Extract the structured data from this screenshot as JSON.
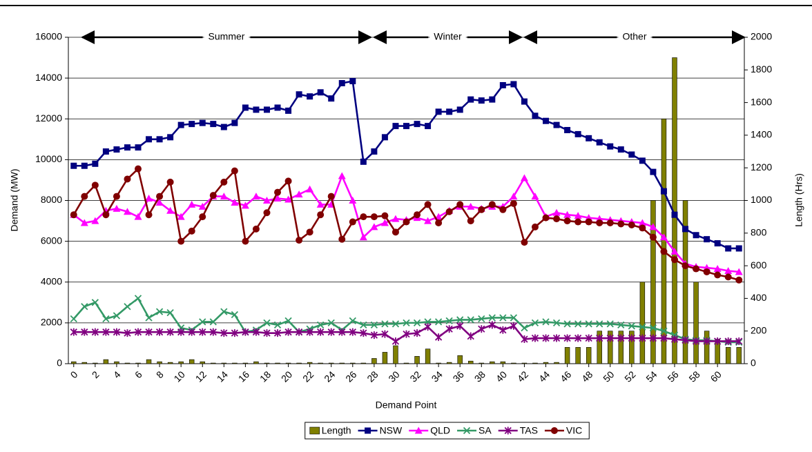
{
  "chart_data": {
    "type": "combo",
    "annotations": [
      "Summer",
      "Winter",
      "Other"
    ],
    "x_label": "Demand Point",
    "y_label": "Demand (MW)",
    "y2_label": "Length (Hrs)",
    "x": [
      0,
      1,
      2,
      3,
      4,
      5,
      6,
      7,
      8,
      9,
      10,
      11,
      12,
      13,
      14,
      15,
      16,
      17,
      18,
      19,
      20,
      21,
      22,
      23,
      24,
      25,
      26,
      27,
      28,
      29,
      30,
      31,
      32,
      33,
      34,
      35,
      36,
      37,
      38,
      39,
      40,
      41,
      42,
      43,
      44,
      45,
      46,
      47,
      48,
      49,
      50,
      51,
      52,
      53,
      54,
      55,
      56,
      57,
      58,
      59,
      60,
      61,
      62
    ],
    "xlim": [
      -0.5,
      62.5
    ],
    "xticks": [
      0,
      2,
      4,
      6,
      8,
      10,
      12,
      14,
      16,
      18,
      20,
      22,
      24,
      26,
      28,
      30,
      32,
      34,
      36,
      38,
      40,
      42,
      44,
      46,
      48,
      50,
      52,
      54,
      56,
      58,
      60
    ],
    "ylim": [
      0,
      16000
    ],
    "yticks": [
      0,
      2000,
      4000,
      6000,
      8000,
      10000,
      12000,
      14000,
      16000
    ],
    "y2lim": [
      0,
      2000
    ],
    "y2ticks": [
      0,
      200,
      400,
      600,
      800,
      1000,
      1200,
      1400,
      1600,
      1800,
      2000
    ],
    "grid": true,
    "legend": "bottom",
    "series": [
      {
        "name": "Length",
        "type": "bar",
        "axis": "y2",
        "color": "#808000",
        "values": [
          12,
          8,
          4,
          25,
          12,
          4,
          4,
          25,
          12,
          8,
          12,
          25,
          12,
          4,
          4,
          4,
          4,
          12,
          4,
          4,
          4,
          4,
          8,
          4,
          4,
          4,
          4,
          4,
          32,
          70,
          110,
          4,
          45,
          90,
          4,
          8,
          50,
          16,
          4,
          12,
          12,
          4,
          4,
          4,
          8,
          8,
          100,
          100,
          100,
          200,
          200,
          200,
          200,
          500,
          1000,
          1500,
          1875,
          1000,
          500,
          200,
          150,
          100,
          100
        ]
      },
      {
        "name": "NSW",
        "type": "line",
        "marker": "square",
        "color": "#000080",
        "values": [
          9700,
          9700,
          9800,
          10400,
          10500,
          10600,
          10600,
          11000,
          11000,
          11100,
          11700,
          11750,
          11800,
          11750,
          11600,
          11800,
          12550,
          12450,
          12450,
          12550,
          12400,
          13200,
          13100,
          13300,
          13000,
          13750,
          13850,
          9900,
          10400,
          11100,
          11650,
          11650,
          11750,
          11650,
          12350,
          12350,
          12450,
          12950,
          12900,
          12950,
          13650,
          13700,
          12850,
          12150,
          11900,
          11700,
          11450,
          11250,
          11050,
          10850,
          10650,
          10500,
          10250,
          9950,
          9400,
          8450,
          7300,
          6600,
          6300,
          6100,
          5900,
          5650,
          5650
        ]
      },
      {
        "name": "QLD",
        "type": "line",
        "marker": "triangle",
        "color": "#ff00ff",
        "values": [
          7300,
          6900,
          7000,
          7500,
          7600,
          7450,
          7200,
          8100,
          7900,
          7500,
          7200,
          7800,
          7700,
          8200,
          8200,
          7900,
          7750,
          8200,
          8000,
          8100,
          8050,
          8300,
          8550,
          7800,
          7800,
          9200,
          8000,
          6200,
          6700,
          6900,
          7100,
          7050,
          7150,
          7000,
          7200,
          7500,
          7700,
          7700,
          7600,
          7700,
          7700,
          8200,
          9100,
          8200,
          7200,
          7400,
          7300,
          7250,
          7150,
          7100,
          7050,
          7000,
          6950,
          6900,
          6700,
          6200,
          5500,
          4900,
          4750,
          4700,
          4650,
          4550,
          4500
        ]
      },
      {
        "name": "SA",
        "type": "line",
        "marker": "x",
        "color": "#339966",
        "values": [
          2200,
          2800,
          3000,
          2200,
          2350,
          2800,
          3200,
          2250,
          2550,
          2500,
          1750,
          1650,
          2050,
          2050,
          2550,
          2400,
          1550,
          1650,
          2000,
          1900,
          2100,
          1550,
          1700,
          1900,
          2000,
          1650,
          2100,
          1900,
          1900,
          1950,
          1950,
          2000,
          2000,
          2050,
          2050,
          2100,
          2150,
          2150,
          2200,
          2250,
          2250,
          2250,
          1750,
          2000,
          2050,
          2000,
          1950,
          1950,
          1950,
          1950,
          1950,
          1900,
          1850,
          1800,
          1750,
          1600,
          1400,
          1200,
          1150,
          1150,
          1100,
          1050,
          1050
        ]
      },
      {
        "name": "TAS",
        "type": "line",
        "marker": "star",
        "color": "#800080",
        "values": [
          1550,
          1550,
          1550,
          1550,
          1550,
          1500,
          1550,
          1550,
          1550,
          1550,
          1550,
          1550,
          1550,
          1550,
          1500,
          1500,
          1550,
          1550,
          1500,
          1500,
          1550,
          1550,
          1550,
          1550,
          1550,
          1550,
          1550,
          1500,
          1400,
          1450,
          1100,
          1450,
          1500,
          1800,
          1300,
          1700,
          1850,
          1350,
          1700,
          1900,
          1650,
          1850,
          1200,
          1250,
          1250,
          1250,
          1250,
          1250,
          1250,
          1250,
          1250,
          1250,
          1250,
          1250,
          1250,
          1250,
          1200,
          1150,
          1100,
          1100,
          1100,
          1100,
          1100
        ]
      },
      {
        "name": "VIC",
        "type": "line",
        "marker": "circle",
        "color": "#800000",
        "values": [
          7300,
          8200,
          8750,
          7300,
          8200,
          9050,
          9550,
          7300,
          8200,
          8900,
          6000,
          6500,
          7200,
          8250,
          8900,
          9450,
          6000,
          6600,
          7400,
          8400,
          8950,
          6050,
          6450,
          7300,
          8200,
          6100,
          6950,
          7200,
          7200,
          7250,
          6450,
          6950,
          7300,
          7800,
          6900,
          7450,
          7800,
          7000,
          7550,
          7800,
          7550,
          7850,
          5950,
          6700,
          7150,
          7100,
          7000,
          6950,
          6950,
          6900,
          6900,
          6850,
          6800,
          6650,
          6200,
          5500,
          5100,
          4800,
          4650,
          4500,
          4350,
          4250,
          4100
        ]
      }
    ]
  }
}
